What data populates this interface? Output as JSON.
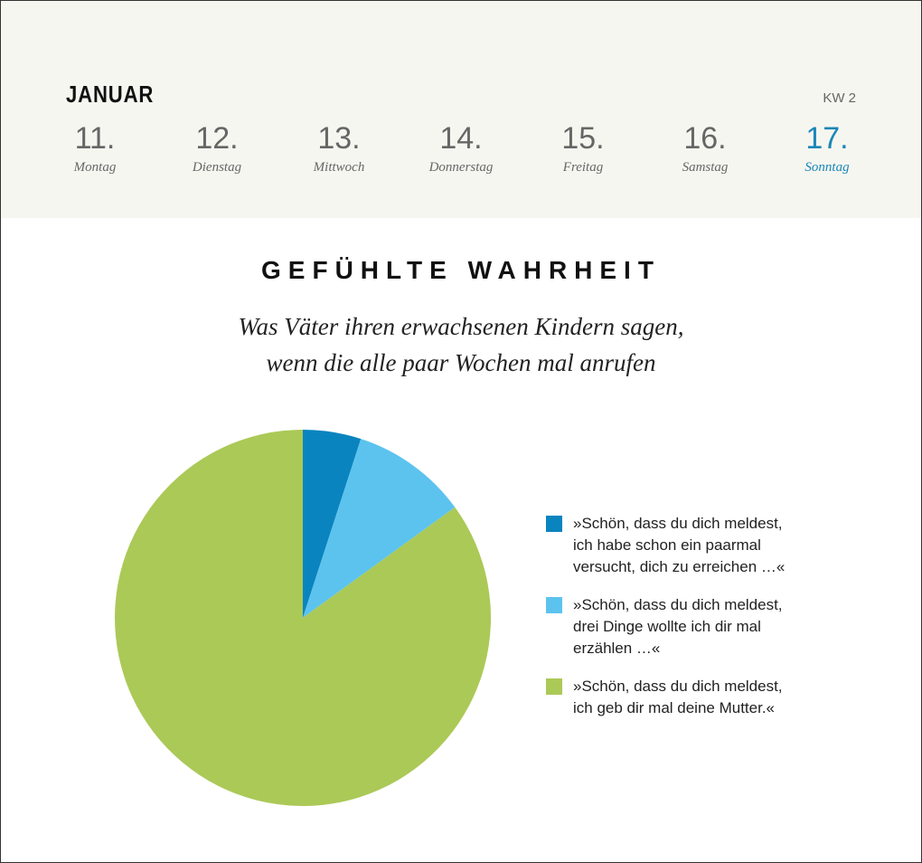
{
  "header": {
    "month": "JANUAR",
    "week": "KW 2",
    "days": [
      {
        "num": "11.",
        "name": "Montag"
      },
      {
        "num": "12.",
        "name": "Dienstag"
      },
      {
        "num": "13.",
        "name": "Mittwoch"
      },
      {
        "num": "14.",
        "name": "Donnerstag"
      },
      {
        "num": "15.",
        "name": "Freitag"
      },
      {
        "num": "16.",
        "name": "Samstag"
      },
      {
        "num": "17.",
        "name": "Sonntag"
      }
    ],
    "active_color": "#1a86b8"
  },
  "chart_data": {
    "type": "pie",
    "title": "GEFÜHLTE WAHRHEIT",
    "subtitle": "Was Väter ihren erwachsenen Kindern sagen,\nwenn die alle paar Wochen mal anrufen",
    "legend_position": "right",
    "slices": [
      {
        "label": "»Schön, dass du dich meldest,\nich habe schon ein paarmal\nversucht, dich zu erreichen …«",
        "value": 5,
        "color": "#0a84bf"
      },
      {
        "label": "»Schön, dass du dich meldest,\ndrei Dinge wollte ich dir mal\nerzählen …«",
        "value": 10,
        "color": "#5cc3ee"
      },
      {
        "label": "»Schön, dass du dich meldest,\nich geb dir mal deine Mutter.«",
        "value": 85,
        "color": "#abc957"
      }
    ]
  }
}
